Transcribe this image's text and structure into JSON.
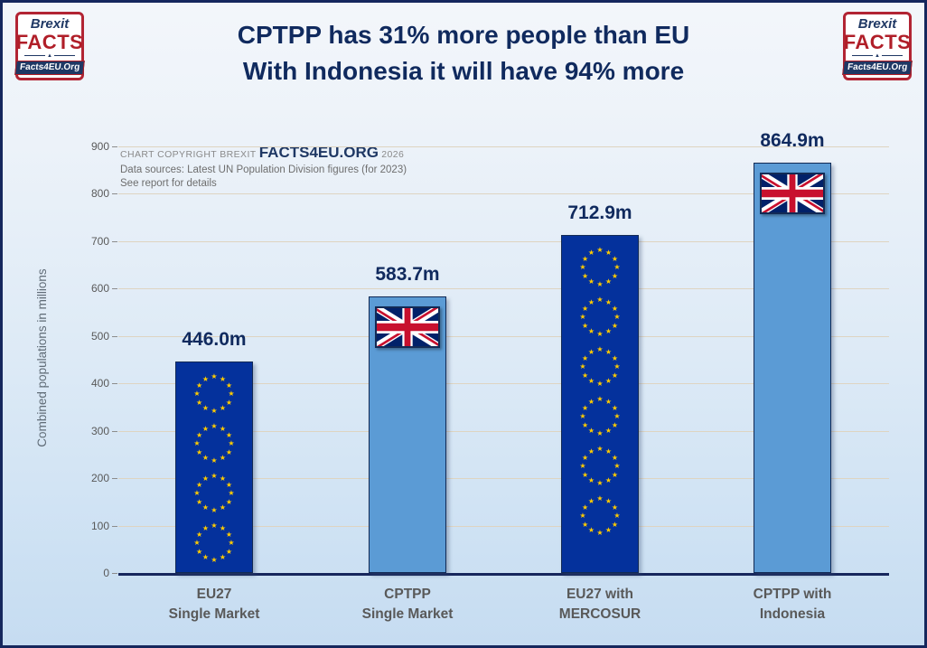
{
  "page": {
    "title_line1": "CPTPP has 31% more people than EU",
    "title_line2": "With Indonesia it will have 94% more"
  },
  "logo": {
    "top": "Brexit",
    "main": "FACTS",
    "site": "Facts4EU.Org"
  },
  "copyright": {
    "prefix": "CHART COPYRIGHT BREXIT",
    "brand": "FACTS4EU.ORG",
    "year": "2026",
    "sources": "Data sources: Latest UN Population Division figures (for 2023)",
    "note": "See report for details"
  },
  "chart_data": {
    "type": "bar",
    "title": "CPTPP has 31% more people than EU / With Indonesia it will have 94% more",
    "ylabel": "Combined populations in millions",
    "xlabel": "",
    "ylim": [
      0,
      900
    ],
    "yticks": [
      0,
      100,
      200,
      300,
      400,
      500,
      600,
      700,
      800,
      900
    ],
    "grid": true,
    "legend": "none",
    "categories": [
      [
        "EU27",
        "Single Market"
      ],
      [
        "CPTPP",
        "Single Market"
      ],
      [
        "EU27 with",
        "MERCOSUR"
      ],
      [
        "CPTPP with",
        "Indonesia"
      ]
    ],
    "values": [
      446.0,
      583.7,
      712.9,
      864.9
    ],
    "value_labels": [
      "446.0m",
      "583.7m",
      "712.9m",
      "864.9m"
    ],
    "bar_decorations": [
      "eu-stars",
      "uk-flag",
      "eu-stars",
      "uk-flag"
    ],
    "colors": {
      "eu_bar": "#04319c",
      "cptpp_bar": "#5b9bd5",
      "star_yellow": "#ffcc00",
      "title_navy": "#102a5e",
      "axis_navy": "#17275c",
      "gridline": "#ded4c1",
      "tick_gray": "#595959",
      "uk_flag_blue": "#012169",
      "uk_flag_red": "#C8102E"
    }
  }
}
